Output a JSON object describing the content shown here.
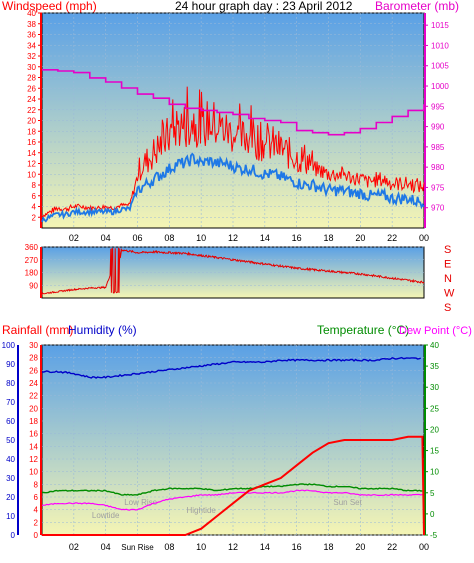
{
  "header": {
    "windspeed_label": "Windspeed (mph)",
    "title": "24 hour graph day : 23 April 2012",
    "barometer_label": "Barometer (mb)"
  },
  "colors": {
    "wind": "#ff0000",
    "gust": "#ff0000",
    "avg_wind": "#1e78e6",
    "barometer": "#e600c8",
    "direction": "#e60000",
    "rainfall": "#ff0000",
    "humidity": "#0000c8",
    "temperature": "#008c00",
    "dewpoint": "#ff00ff",
    "sky_top": "#5aa0e6",
    "sky_bottom": "#f5f5b4"
  },
  "chart_data": [
    {
      "type": "line",
      "panel": "wind_barometer",
      "x_tick_labels": [
        "02",
        "04",
        "06",
        "08",
        "10",
        "12",
        "14",
        "16",
        "18",
        "20",
        "22",
        "00"
      ],
      "x_range_hours": [
        0,
        24
      ],
      "y_left": {
        "label": "Windspeed (mph)",
        "range": [
          0,
          40
        ],
        "ticks": [
          2,
          4,
          6,
          8,
          10,
          12,
          14,
          16,
          18,
          20,
          22,
          24,
          26,
          28,
          30,
          32,
          34,
          36,
          38,
          40
        ]
      },
      "y_right": {
        "label": "Barometer (mb)",
        "range": [
          965,
          1018
        ],
        "ticks": [
          970,
          975,
          980,
          985,
          990,
          995,
          1000,
          1005,
          1010,
          1015
        ]
      },
      "series": [
        {
          "name": "Windspeed (mph)",
          "role": "gust",
          "x": [
            0,
            0.5,
            1,
            1.5,
            2,
            2.5,
            3,
            3.5,
            4,
            4.5,
            5,
            5.5,
            6,
            6.5,
            7,
            7.5,
            8,
            8.5,
            9,
            9.5,
            10,
            10.5,
            11,
            11.5,
            12,
            12.5,
            13,
            13.5,
            14,
            14.5,
            15,
            15.5,
            16,
            16.5,
            17,
            17.5,
            18,
            18.5,
            19,
            19.5,
            20,
            20.5,
            21,
            21.5,
            22,
            22.5,
            23,
            23.5,
            24
          ],
          "values": [
            3,
            4,
            5,
            4.5,
            5,
            5,
            4.5,
            4.5,
            5,
            4.5,
            5,
            5,
            12,
            14,
            16,
            18,
            20,
            22,
            22,
            23,
            21,
            23,
            22,
            21,
            20,
            19,
            20,
            19,
            18,
            18,
            17,
            16,
            15,
            15,
            14,
            14,
            13,
            13,
            13,
            12,
            12,
            11,
            12,
            12,
            11,
            11,
            11,
            11,
            10
          ]
        },
        {
          "name": "Windspeed (mph)",
          "role": "average",
          "x": [
            0,
            0.5,
            1,
            1.5,
            2,
            2.5,
            3,
            3.5,
            4,
            4.5,
            5,
            5.5,
            6,
            6.5,
            7,
            7.5,
            8,
            8.5,
            9,
            9.5,
            10,
            10.5,
            11,
            11.5,
            12,
            12.5,
            13,
            13.5,
            14,
            14.5,
            15,
            15.5,
            16,
            16.5,
            17,
            17.5,
            18,
            18.5,
            19,
            19.5,
            20,
            20.5,
            21,
            21.5,
            22,
            22.5,
            23,
            23.5,
            24
          ],
          "values": [
            1.5,
            2,
            2.5,
            2.5,
            3,
            3,
            3,
            3,
            3,
            3,
            3.5,
            3.5,
            7,
            8,
            9,
            10,
            11,
            12,
            12,
            13,
            12,
            12.5,
            12,
            12,
            11.5,
            11,
            11,
            10.5,
            10,
            10,
            9.5,
            9,
            8.5,
            8,
            8,
            7.5,
            7,
            7,
            7,
            6.5,
            6.5,
            6,
            6,
            6,
            5.5,
            5.5,
            5.5,
            5,
            5
          ]
        },
        {
          "name": "Barometer (mb)",
          "x": [
            0,
            1,
            2,
            3,
            4,
            5,
            6,
            7,
            8,
            9,
            10,
            11,
            12,
            13,
            14,
            15,
            16,
            17,
            18,
            19,
            20,
            21,
            22,
            23,
            24
          ],
          "values": [
            1004,
            1003.7,
            1003.3,
            1002,
            1001,
            999.5,
            998,
            997,
            995.5,
            994.5,
            994,
            993.5,
            993,
            992,
            991.5,
            991,
            989,
            988.5,
            988,
            988.5,
            989.5,
            991,
            992.5,
            994,
            995.5
          ]
        }
      ]
    },
    {
      "type": "scatter",
      "panel": "wind_direction",
      "x_tick_labels": [
        "02",
        "04",
        "06",
        "08",
        "10",
        "12",
        "14",
        "16",
        "18",
        "20",
        "22",
        "00"
      ],
      "x_range_hours": [
        0,
        24
      ],
      "y_range": [
        0,
        360
      ],
      "y_ticks": [
        90,
        180,
        270,
        360
      ],
      "compass_labels": [
        "S",
        "E",
        "N",
        "W",
        "S"
      ],
      "series": [
        {
          "name": "Wind direction",
          "x": [
            0,
            1,
            2,
            3,
            4,
            4.4,
            4.6,
            5,
            5.5,
            6,
            7,
            8,
            9,
            10,
            11,
            12,
            13,
            14,
            15,
            16,
            17,
            18,
            19,
            20,
            21,
            22,
            23,
            24
          ],
          "values": [
            30,
            45,
            60,
            70,
            75,
            200,
            60,
            340,
            330,
            320,
            325,
            320,
            315,
            300,
            285,
            270,
            255,
            240,
            225,
            210,
            200,
            190,
            180,
            170,
            155,
            140,
            125,
            110
          ]
        }
      ]
    },
    {
      "type": "line",
      "panel": "rain_humidity_temperature",
      "header_labels": {
        "rainfall": "Rainfall (mm)",
        "humidity": "Humidity (%)",
        "temperature": "Temperature (°C)",
        "dewpoint": "Dew Point (°C)"
      },
      "x_tick_labels": [
        "02",
        "04",
        "Sun Rise",
        "08",
        "10",
        "12",
        "14",
        "16",
        "18",
        "20",
        "22",
        "00"
      ],
      "x_range_hours": [
        0,
        24
      ],
      "y_humidity": {
        "label": "Humidity (%)",
        "range": [
          0,
          100
        ],
        "ticks": [
          0,
          10,
          20,
          30,
          40,
          50,
          60,
          70,
          80,
          90,
          100
        ]
      },
      "y_rainfall": {
        "label": "Rainfall (mm)",
        "range": [
          0,
          30
        ],
        "ticks": [
          0,
          2,
          4,
          6,
          8,
          10,
          12,
          14,
          16,
          18,
          20,
          22,
          24,
          26,
          28,
          30
        ]
      },
      "y_temperature": {
        "label": "Temperature (°C)",
        "range": [
          -5,
          40
        ],
        "ticks": [
          -5,
          0,
          5,
          10,
          15,
          20,
          25,
          30,
          35,
          40
        ]
      },
      "annotations": [
        "Lowtide",
        "Low Rise",
        "Hightide",
        "Sun Set"
      ],
      "series": [
        {
          "name": "Humidity (%)",
          "axis": "humidity",
          "x": [
            0,
            1,
            2,
            3,
            4,
            5,
            6,
            7,
            8,
            9,
            10,
            11,
            12,
            13,
            14,
            15,
            16,
            17,
            18,
            19,
            20,
            21,
            22,
            23,
            23.9
          ],
          "values": [
            86,
            86,
            85,
            83,
            83,
            84,
            85,
            86,
            87,
            88,
            89,
            90,
            91,
            91,
            91,
            92,
            92,
            92,
            92,
            92,
            92,
            92,
            93,
            93,
            93
          ]
        },
        {
          "name": "Rainfall (mm)",
          "axis": "rainfall",
          "x": [
            0,
            9,
            10,
            11,
            12,
            13,
            14,
            15,
            16,
            17,
            18,
            19,
            20,
            21,
            22,
            23,
            23.9,
            24
          ],
          "values": [
            0,
            0,
            1,
            3,
            5,
            7,
            8,
            9,
            11,
            13,
            14.5,
            15,
            15,
            15,
            15,
            15.5,
            15.5,
            0
          ]
        },
        {
          "name": "Temperature (°C)",
          "axis": "temperature",
          "x": [
            0,
            1,
            2,
            3,
            4,
            5,
            6,
            7,
            8,
            9,
            10,
            11,
            12,
            13,
            14,
            15,
            16,
            17,
            18,
            19,
            20,
            21,
            22,
            23,
            24
          ],
          "values": [
            5,
            5.5,
            5.5,
            5.5,
            5.5,
            4.5,
            4.5,
            5.5,
            6,
            6,
            6,
            5.5,
            6,
            6,
            6.5,
            6.5,
            7,
            7,
            6.5,
            6.5,
            6,
            6,
            6,
            5.5,
            5.5
          ]
        },
        {
          "name": "Dew Point (°C)",
          "axis": "temperature",
          "x": [
            0,
            1,
            2,
            3,
            4,
            5,
            6,
            7,
            8,
            9,
            10,
            11,
            12,
            13,
            14,
            15,
            16,
            17,
            18,
            19,
            20,
            21,
            22,
            23,
            24
          ],
          "values": [
            2,
            2.5,
            2.5,
            2.5,
            2,
            1,
            1,
            2.5,
            3.5,
            4,
            4.5,
            4.5,
            5,
            5,
            5,
            5,
            5.5,
            5.5,
            5,
            5,
            4.5,
            4.5,
            4.5,
            4.5,
            4.5
          ]
        }
      ]
    }
  ]
}
